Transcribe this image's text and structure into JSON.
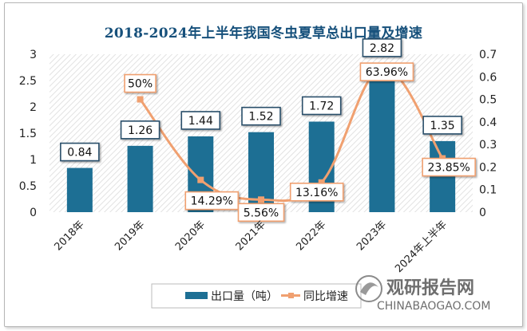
{
  "chart_data": {
    "type": "bar+line",
    "title": "2018-2024年上半年我国冬虫夏草总出口量及增速",
    "categories": [
      "2018年",
      "2019年",
      "2020年",
      "2021年",
      "2022年",
      "2023年",
      "2024年上半年"
    ],
    "series": [
      {
        "name": "出口量（吨）",
        "type": "bar",
        "axis": "left",
        "color": "#1d6f94",
        "values": [
          0.84,
          1.26,
          1.44,
          1.52,
          1.72,
          2.82,
          1.35
        ],
        "labels": [
          "0.84",
          "1.26",
          "1.44",
          "1.52",
          "1.72",
          "2.82",
          "1.35"
        ]
      },
      {
        "name": "同比增速",
        "type": "line",
        "axis": "right",
        "color": "#f0a070",
        "values": [
          null,
          0.5,
          0.1429,
          0.0556,
          0.1316,
          0.6396,
          0.2385
        ],
        "labels": [
          "",
          "50%",
          "14.29%",
          "5.56%",
          "13.16%",
          "63.96%",
          "23.85%"
        ]
      }
    ],
    "y_left": {
      "min": 0,
      "max": 3,
      "ticks": [
        "0",
        "0.5",
        "1",
        "1.5",
        "2",
        "2.5",
        "3"
      ]
    },
    "y_right": {
      "min": 0,
      "max": 0.7,
      "ticks": [
        "0",
        "0.1",
        "0.2",
        "0.3",
        "0.4",
        "0.5",
        "0.6",
        "0.7"
      ]
    },
    "grid": false,
    "plot_background": "diagonal hatch",
    "legend_position": "bottom"
  },
  "watermark": {
    "brand_cn": "观研报告网",
    "brand_en": "CHINABAOGAO.COM"
  }
}
